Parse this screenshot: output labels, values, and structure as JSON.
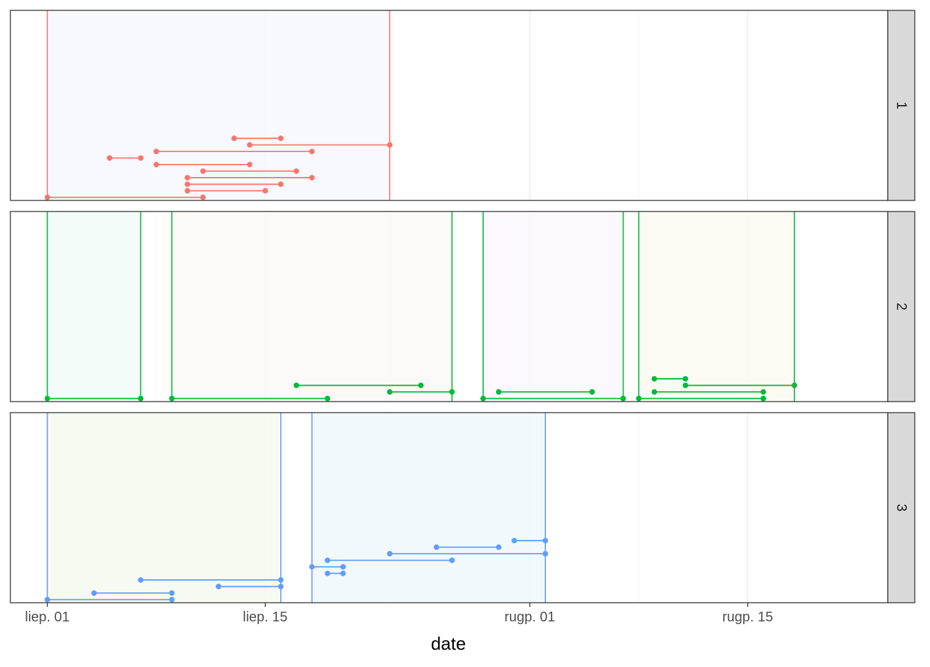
{
  "chart_data": {
    "type": "gantt",
    "facet_variable": "",
    "facets": [
      {
        "label": "1",
        "color": "#F8766D",
        "groups": [
          {
            "start": "2019-07-01",
            "end": "2019-07-23",
            "fill": "#F7F7FF"
          }
        ],
        "segments": [
          {
            "start": "2019-07-13",
            "end": "2019-07-16",
            "level": 9
          },
          {
            "start": "2019-07-14",
            "end": "2019-07-23",
            "level": 8
          },
          {
            "start": "2019-07-08",
            "end": "2019-07-18",
            "level": 7
          },
          {
            "start": "2019-07-05",
            "end": "2019-07-07",
            "level": 6
          },
          {
            "start": "2019-07-08",
            "end": "2019-07-14",
            "level": 5
          },
          {
            "start": "2019-07-11",
            "end": "2019-07-17",
            "level": 4
          },
          {
            "start": "2019-07-10",
            "end": "2019-07-18",
            "level": 3
          },
          {
            "start": "2019-07-10",
            "end": "2019-07-16",
            "level": 2
          },
          {
            "start": "2019-07-10",
            "end": "2019-07-15",
            "level": 1
          },
          {
            "start": "2019-07-01",
            "end": "2019-07-11",
            "level": 0
          }
        ]
      },
      {
        "label": "2",
        "color": "#00BA38",
        "groups": [
          {
            "start": "2019-07-01",
            "end": "2019-07-07",
            "fill": "#F2FBF8"
          },
          {
            "start": "2019-07-09",
            "end": "2019-07-27",
            "fill": "#FCF8F7"
          },
          {
            "start": "2019-07-29",
            "end": "2019-08-07",
            "fill": "#FDF7FD"
          },
          {
            "start": "2019-08-08",
            "end": "2019-08-18",
            "fill": "#FCFAF1"
          }
        ],
        "segments": [
          {
            "start": "2019-07-01",
            "end": "2019-07-07",
            "level": 0
          },
          {
            "start": "2019-07-09",
            "end": "2019-07-19",
            "level": 0
          },
          {
            "start": "2019-07-17",
            "end": "2019-07-25",
            "level": 2
          },
          {
            "start": "2019-07-23",
            "end": "2019-07-27",
            "level": 1
          },
          {
            "start": "2019-07-29",
            "end": "2019-08-07",
            "level": 0
          },
          {
            "start": "2019-07-30",
            "end": "2019-08-05",
            "level": 1
          },
          {
            "start": "2019-08-08",
            "end": "2019-08-16",
            "level": 0
          },
          {
            "start": "2019-08-09",
            "end": "2019-08-16",
            "level": 1
          },
          {
            "start": "2019-08-11",
            "end": "2019-08-18",
            "level": 2
          },
          {
            "start": "2019-08-09",
            "end": "2019-08-11",
            "level": 3
          }
        ]
      },
      {
        "label": "3",
        "color": "#619CFF",
        "groups": [
          {
            "start": "2019-07-01",
            "end": "2019-07-16",
            "fill": "#F4F9EF"
          },
          {
            "start": "2019-07-18",
            "end": "2019-08-02",
            "fill": "#F0F8FC"
          }
        ],
        "segments": [
          {
            "start": "2019-07-01",
            "end": "2019-07-09",
            "level": 0
          },
          {
            "start": "2019-07-04",
            "end": "2019-07-09",
            "level": 1
          },
          {
            "start": "2019-07-12",
            "end": "2019-07-16",
            "level": 2
          },
          {
            "start": "2019-07-07",
            "end": "2019-07-16",
            "level": 3
          },
          {
            "start": "2019-07-19",
            "end": "2019-07-20",
            "level": 4
          },
          {
            "start": "2019-07-18",
            "end": "2019-07-20",
            "level": 5
          },
          {
            "start": "2019-07-19",
            "end": "2019-07-27",
            "level": 6
          },
          {
            "start": "2019-07-23",
            "end": "2019-08-02",
            "level": 7
          },
          {
            "start": "2019-07-26",
            "end": "2019-07-30",
            "level": 8
          },
          {
            "start": "2019-07-31",
            "end": "2019-08-02",
            "level": 9
          }
        ]
      }
    ],
    "x_domain": [
      "2019-06-28T15:00",
      "2019-08-24T00:00"
    ],
    "x_ticks": [
      {
        "date": "2019-07-01",
        "label": "liep. 01"
      },
      {
        "date": "2019-07-15",
        "label": "liep. 15"
      },
      {
        "date": "2019-08-01",
        "label": "rugp. 01"
      },
      {
        "date": "2019-08-15",
        "label": "rugp. 15"
      }
    ],
    "x_minor_ticks": [
      "2019-07-08",
      "2019-07-23",
      "2019-08-08"
    ],
    "xlabel": "date",
    "ylabel": "",
    "y_levels": 29,
    "grid": true,
    "legend": "none"
  }
}
